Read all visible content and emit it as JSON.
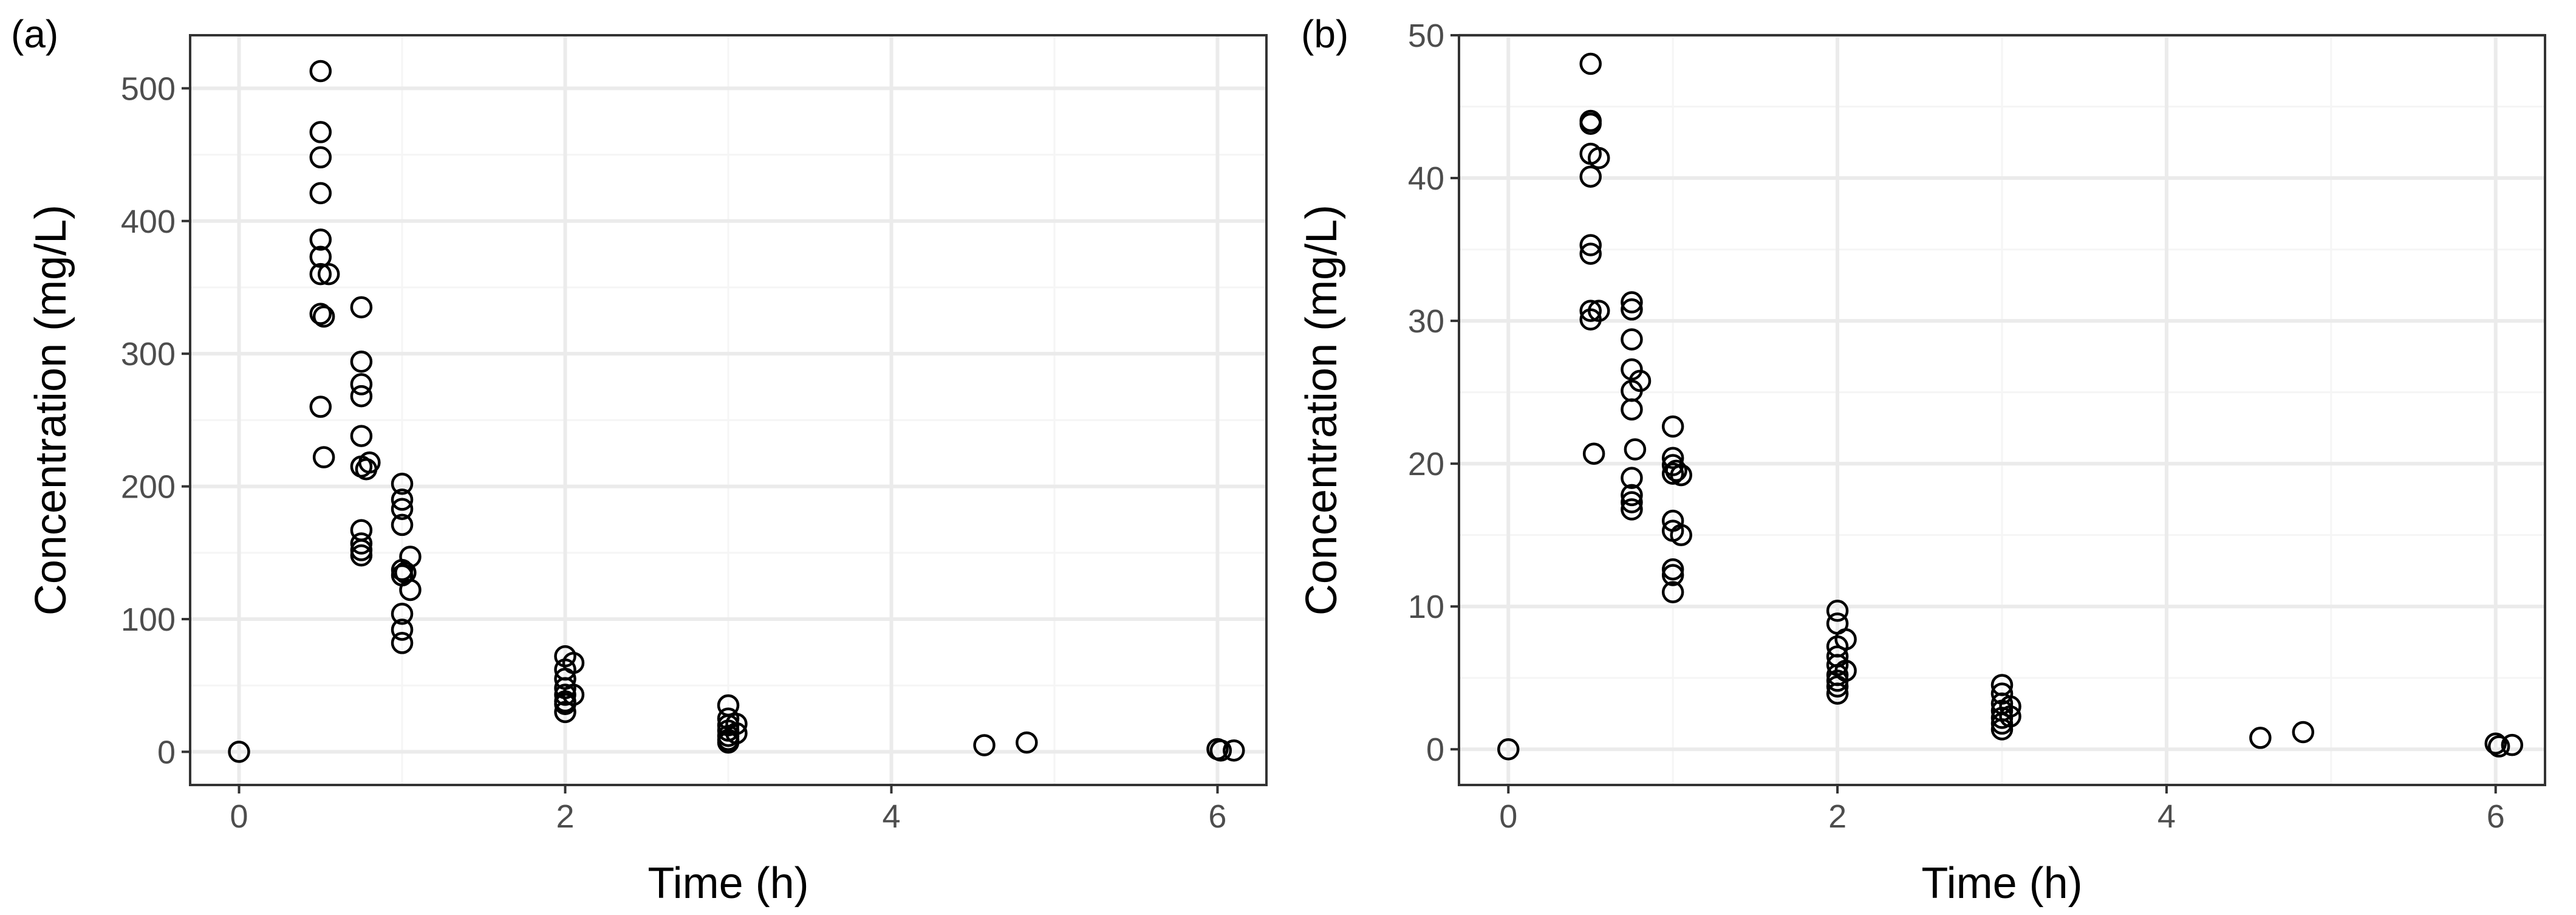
{
  "chart_data": [
    {
      "type": "scatter",
      "tag": "(a)",
      "xlabel": "Time (h)",
      "ylabel": "Concentration (mg/L)",
      "xlim": [
        -0.3,
        6.3
      ],
      "ylim": [
        -25,
        540
      ],
      "x_ticks": [
        0,
        2,
        4,
        6
      ],
      "y_ticks": [
        0,
        100,
        200,
        300,
        400,
        500
      ],
      "grid": true,
      "points": [
        {
          "x": 0,
          "y": 0
        },
        {
          "x": 0.5,
          "y": 513
        },
        {
          "x": 0.5,
          "y": 467
        },
        {
          "x": 0.5,
          "y": 448
        },
        {
          "x": 0.5,
          "y": 421
        },
        {
          "x": 0.5,
          "y": 386
        },
        {
          "x": 0.5,
          "y": 373
        },
        {
          "x": 0.5,
          "y": 360
        },
        {
          "x": 0.5,
          "y": 330
        },
        {
          "x": 0.5,
          "y": 260
        },
        {
          "x": 0.52,
          "y": 222
        },
        {
          "x": 0.52,
          "y": 328
        },
        {
          "x": 0.55,
          "y": 360
        },
        {
          "x": 0.75,
          "y": 335
        },
        {
          "x": 0.75,
          "y": 294
        },
        {
          "x": 0.75,
          "y": 277
        },
        {
          "x": 0.75,
          "y": 268
        },
        {
          "x": 0.75,
          "y": 238
        },
        {
          "x": 0.75,
          "y": 215
        },
        {
          "x": 0.75,
          "y": 167
        },
        {
          "x": 0.75,
          "y": 157
        },
        {
          "x": 0.75,
          "y": 152
        },
        {
          "x": 0.75,
          "y": 148
        },
        {
          "x": 0.78,
          "y": 213
        },
        {
          "x": 0.8,
          "y": 218
        },
        {
          "x": 1,
          "y": 202
        },
        {
          "x": 1,
          "y": 190
        },
        {
          "x": 1,
          "y": 183
        },
        {
          "x": 1,
          "y": 171
        },
        {
          "x": 1,
          "y": 137
        },
        {
          "x": 1,
          "y": 133
        },
        {
          "x": 1,
          "y": 104
        },
        {
          "x": 1,
          "y": 92
        },
        {
          "x": 1,
          "y": 82
        },
        {
          "x": 1.02,
          "y": 135
        },
        {
          "x": 1.05,
          "y": 147
        },
        {
          "x": 1.05,
          "y": 122
        },
        {
          "x": 2,
          "y": 72
        },
        {
          "x": 2,
          "y": 62
        },
        {
          "x": 2,
          "y": 55
        },
        {
          "x": 2,
          "y": 48
        },
        {
          "x": 2,
          "y": 43
        },
        {
          "x": 2,
          "y": 38
        },
        {
          "x": 2,
          "y": 36
        },
        {
          "x": 2,
          "y": 30
        },
        {
          "x": 2.05,
          "y": 67
        },
        {
          "x": 2.05,
          "y": 43
        },
        {
          "x": 3,
          "y": 35
        },
        {
          "x": 3,
          "y": 25
        },
        {
          "x": 3,
          "y": 20
        },
        {
          "x": 3,
          "y": 16
        },
        {
          "x": 3,
          "y": 12
        },
        {
          "x": 3,
          "y": 9
        },
        {
          "x": 3,
          "y": 7
        },
        {
          "x": 3.05,
          "y": 21
        },
        {
          "x": 3.05,
          "y": 14
        },
        {
          "x": 4.57,
          "y": 5
        },
        {
          "x": 4.83,
          "y": 7
        },
        {
          "x": 6,
          "y": 2
        },
        {
          "x": 6.02,
          "y": 1
        },
        {
          "x": 6.1,
          "y": 1
        }
      ]
    },
    {
      "type": "scatter",
      "tag": "(b)",
      "xlabel": "Time (h)",
      "ylabel": "Concentration (mg/L)",
      "xlim": [
        -0.3,
        6.3
      ],
      "ylim": [
        -2.5,
        50
      ],
      "x_ticks": [
        0,
        2,
        4,
        6
      ],
      "y_ticks": [
        0,
        10,
        20,
        30,
        40,
        50
      ],
      "grid": true,
      "points": [
        {
          "x": 0,
          "y": 0
        },
        {
          "x": 0.5,
          "y": 48
        },
        {
          "x": 0.5,
          "y": 44
        },
        {
          "x": 0.5,
          "y": 43.8
        },
        {
          "x": 0.5,
          "y": 41.7
        },
        {
          "x": 0.5,
          "y": 40.1
        },
        {
          "x": 0.5,
          "y": 35.3
        },
        {
          "x": 0.5,
          "y": 34.7
        },
        {
          "x": 0.5,
          "y": 30.7
        },
        {
          "x": 0.5,
          "y": 30.1
        },
        {
          "x": 0.52,
          "y": 20.7
        },
        {
          "x": 0.55,
          "y": 30.7
        },
        {
          "x": 0.55,
          "y": 41.4
        },
        {
          "x": 0.75,
          "y": 31.3
        },
        {
          "x": 0.75,
          "y": 30.8
        },
        {
          "x": 0.75,
          "y": 28.7
        },
        {
          "x": 0.75,
          "y": 26.6
        },
        {
          "x": 0.75,
          "y": 25.1
        },
        {
          "x": 0.75,
          "y": 23.8
        },
        {
          "x": 0.75,
          "y": 19
        },
        {
          "x": 0.75,
          "y": 17.8
        },
        {
          "x": 0.75,
          "y": 17.3
        },
        {
          "x": 0.75,
          "y": 16.8
        },
        {
          "x": 0.77,
          "y": 21
        },
        {
          "x": 0.8,
          "y": 25.8
        },
        {
          "x": 1,
          "y": 22.6
        },
        {
          "x": 1,
          "y": 20.4
        },
        {
          "x": 1,
          "y": 19.9
        },
        {
          "x": 1,
          "y": 19.3
        },
        {
          "x": 1,
          "y": 16
        },
        {
          "x": 1,
          "y": 15.3
        },
        {
          "x": 1,
          "y": 12.6
        },
        {
          "x": 1,
          "y": 12.2
        },
        {
          "x": 1,
          "y": 11
        },
        {
          "x": 1.02,
          "y": 19.5
        },
        {
          "x": 1.05,
          "y": 19.2
        },
        {
          "x": 1.05,
          "y": 15
        },
        {
          "x": 2,
          "y": 9.7
        },
        {
          "x": 2,
          "y": 8.8
        },
        {
          "x": 2,
          "y": 7.2
        },
        {
          "x": 2,
          "y": 6.5
        },
        {
          "x": 2,
          "y": 5.9
        },
        {
          "x": 2,
          "y": 5.2
        },
        {
          "x": 2,
          "y": 4.8
        },
        {
          "x": 2,
          "y": 4.4
        },
        {
          "x": 2,
          "y": 3.9
        },
        {
          "x": 2.05,
          "y": 7.7
        },
        {
          "x": 2.05,
          "y": 5.5
        },
        {
          "x": 3,
          "y": 4.5
        },
        {
          "x": 3,
          "y": 3.9
        },
        {
          "x": 3,
          "y": 3.2
        },
        {
          "x": 3,
          "y": 2.7
        },
        {
          "x": 3,
          "y": 2.2
        },
        {
          "x": 3,
          "y": 1.8
        },
        {
          "x": 3,
          "y": 1.4
        },
        {
          "x": 3.05,
          "y": 3
        },
        {
          "x": 3.05,
          "y": 2.3
        },
        {
          "x": 4.57,
          "y": 0.8
        },
        {
          "x": 4.83,
          "y": 1.2
        },
        {
          "x": 6,
          "y": 0.4
        },
        {
          "x": 6.02,
          "y": 0.2
        },
        {
          "x": 6.1,
          "y": 0.3
        }
      ]
    }
  ]
}
